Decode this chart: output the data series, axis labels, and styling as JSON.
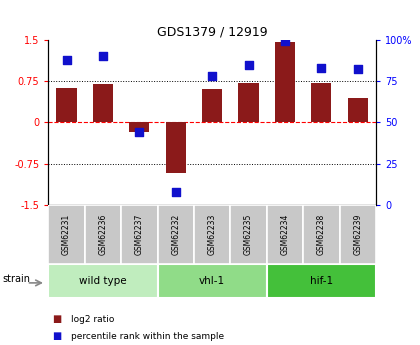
{
  "title": "GDS1379 / 12919",
  "samples": [
    "GSM62231",
    "GSM62236",
    "GSM62237",
    "GSM62232",
    "GSM62233",
    "GSM62235",
    "GSM62234",
    "GSM62238",
    "GSM62239"
  ],
  "log2_ratio": [
    0.62,
    0.7,
    -0.18,
    -0.92,
    0.6,
    0.72,
    1.45,
    0.72,
    0.45
  ],
  "percentile": [
    88,
    90,
    44,
    8,
    78,
    85,
    99,
    83,
    82
  ],
  "groups": [
    {
      "label": "wild type",
      "start": 0,
      "end": 3,
      "color": "#c0edbe"
    },
    {
      "label": "vhl-1",
      "start": 3,
      "end": 6,
      "color": "#90dc88"
    },
    {
      "label": "hif-1",
      "start": 6,
      "end": 9,
      "color": "#44c03a"
    }
  ],
  "bar_color": "#8B1A1A",
  "dot_color": "#1010cc",
  "ylim_left": [
    -1.5,
    1.5
  ],
  "ylim_right": [
    0,
    100
  ],
  "yticks_left": [
    -1.5,
    -0.75,
    0,
    0.75,
    1.5
  ],
  "ytick_labels_left": [
    "-1.5",
    "-0.75",
    "0",
    "0.75",
    "1.5"
  ],
  "yticks_right": [
    0,
    25,
    50,
    75,
    100
  ],
  "ytick_labels_right": [
    "0",
    "25",
    "50",
    "75",
    "100%"
  ],
  "hlines": [
    0.75,
    -0.75
  ],
  "hline_zero": 0,
  "bar_width": 0.55,
  "dot_size": 28,
  "sample_bg": "#c8c8c8",
  "sample_edge": "#ffffff",
  "strain_label": "strain",
  "legend_items": [
    {
      "color": "#8B1A1A",
      "label": "log2 ratio"
    },
    {
      "color": "#1010cc",
      "label": "percentile rank within the sample"
    }
  ]
}
